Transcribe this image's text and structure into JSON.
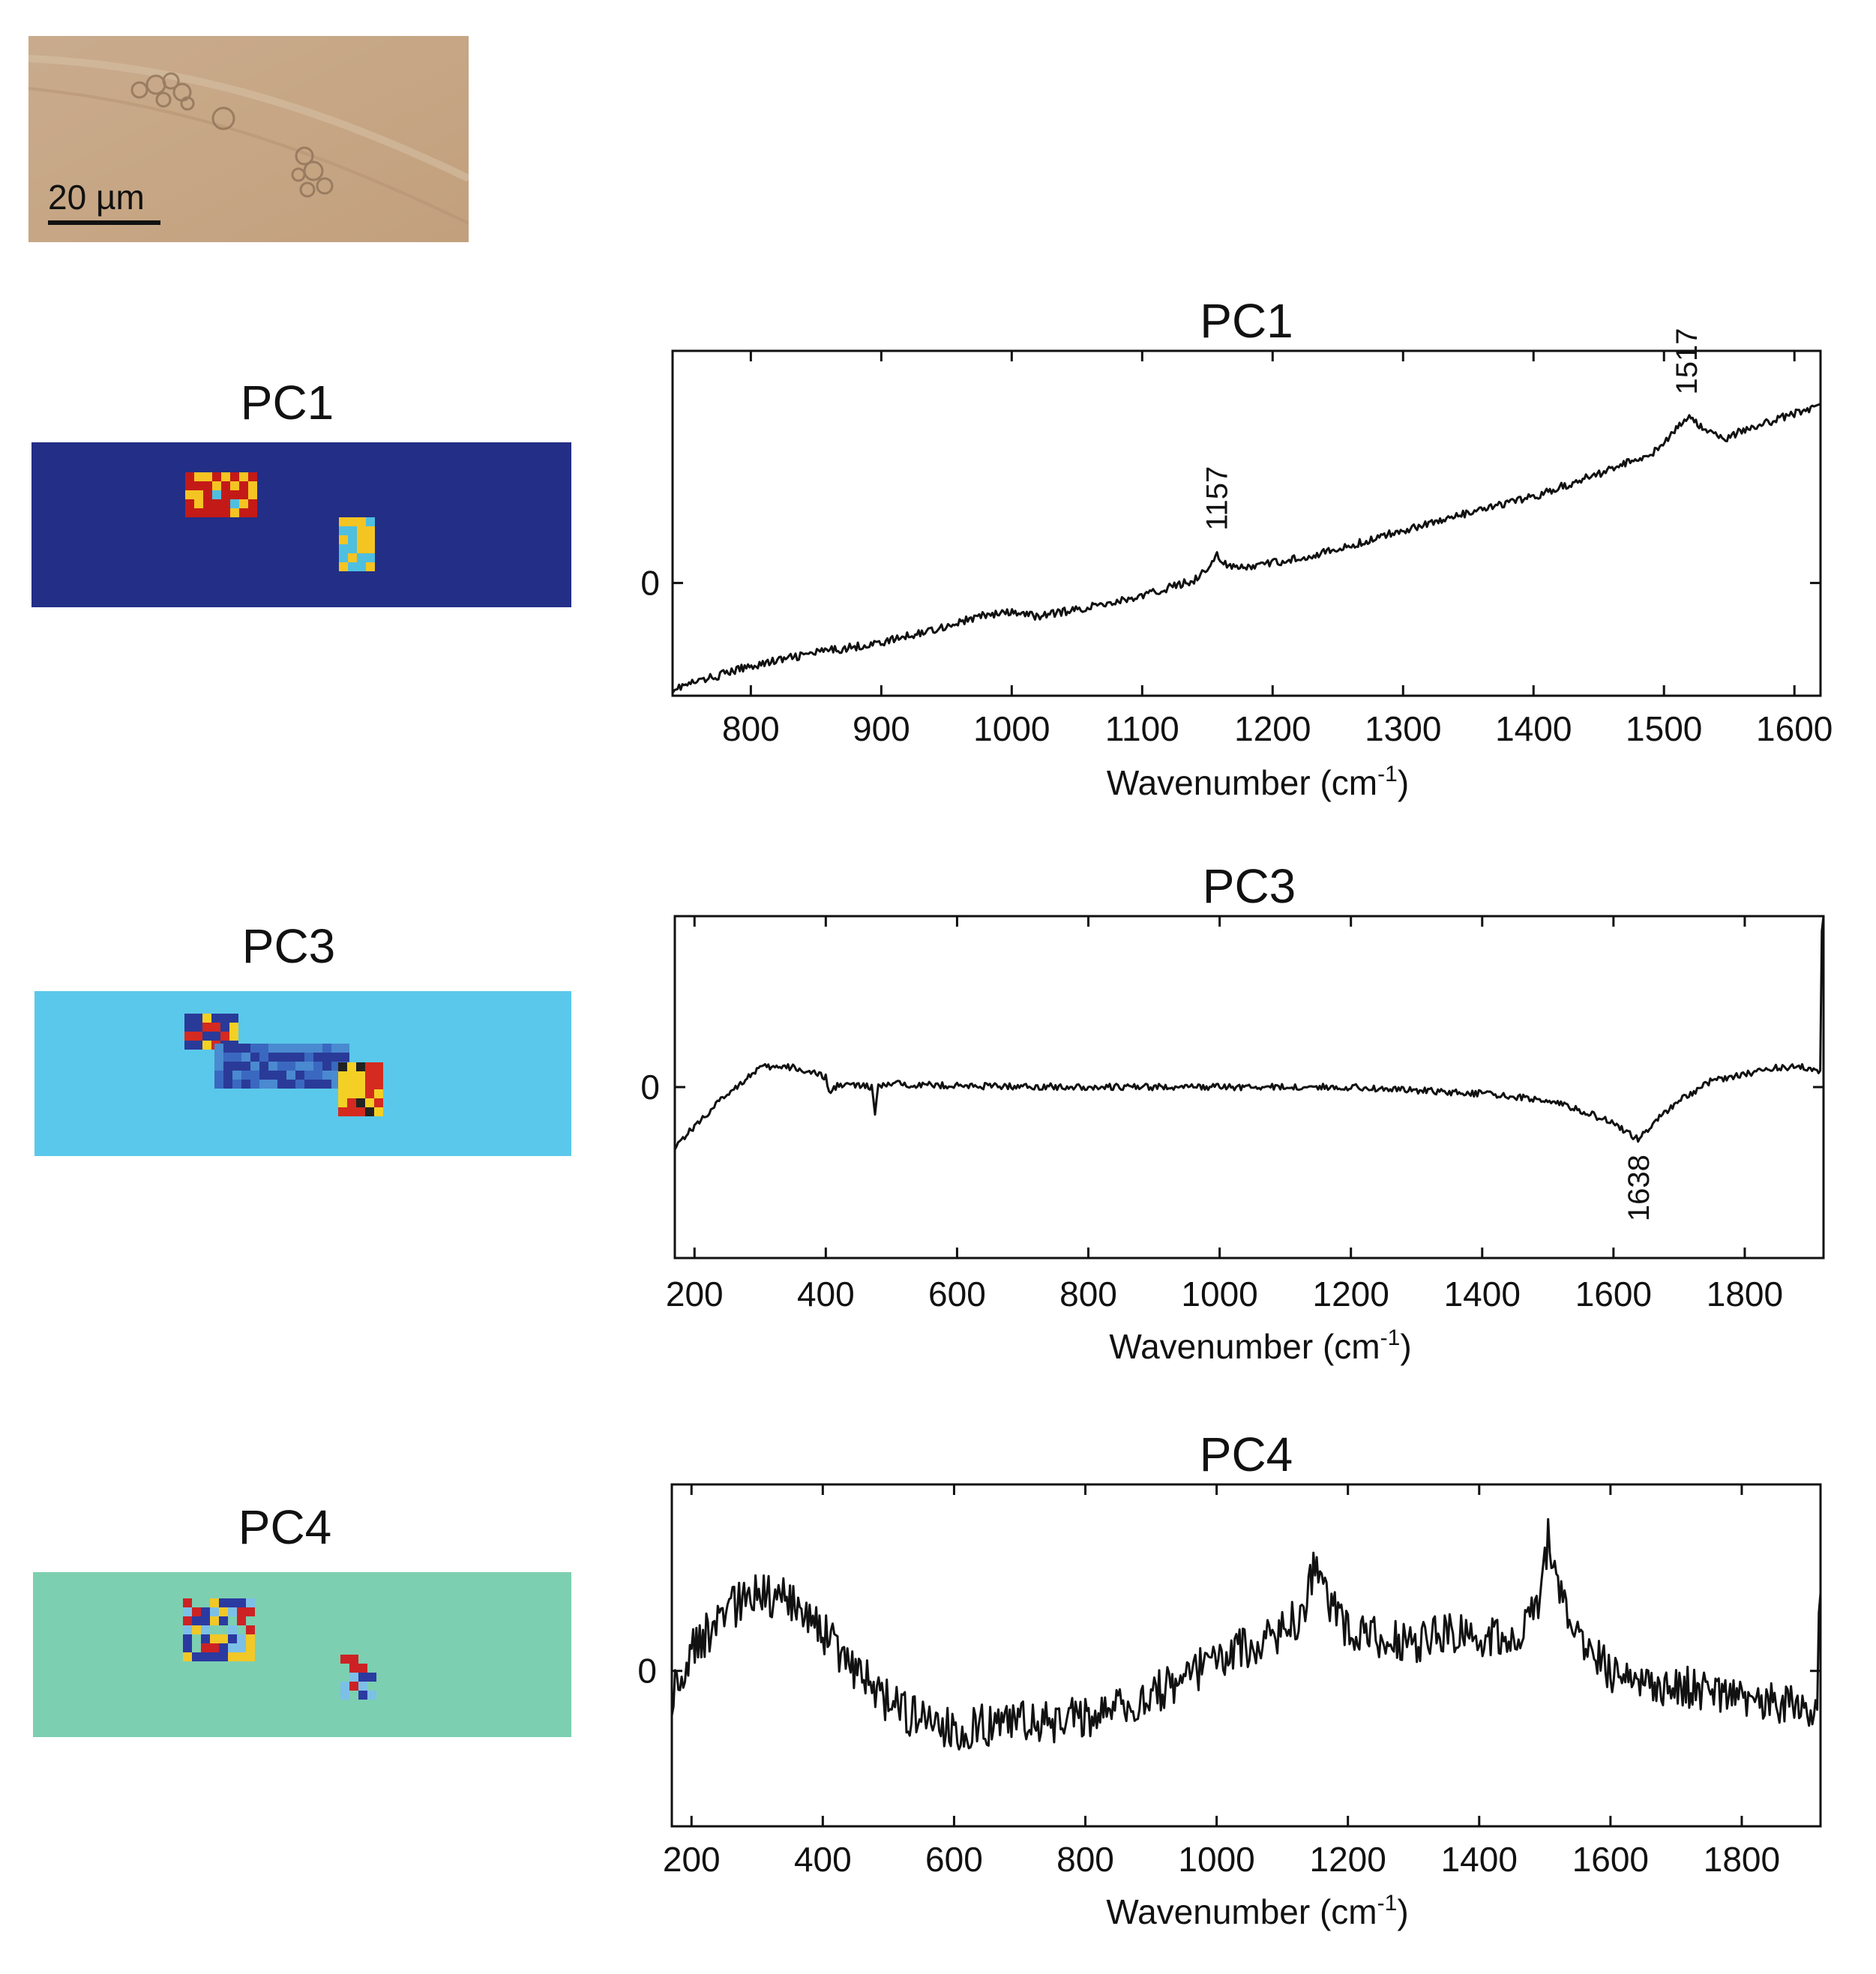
{
  "micrograph": {
    "scale_label": "20 µm"
  },
  "maps": [
    {
      "title": "PC1",
      "colors": {
        "background": "#232e86",
        "hot": "#c41a17",
        "warm": "#f4c423",
        "mid": "#4fbfe0"
      }
    },
    {
      "title": "PC3",
      "colors": {
        "background": "#5ac8ea",
        "hot": "#d42a1f",
        "warm": "#f4d025",
        "cold": "#2a3a98"
      }
    },
    {
      "title": "PC4",
      "colors": {
        "background": "#7ccfb1",
        "hot": "#cc2224",
        "warm": "#f2c827",
        "cold": "#2b3aa0"
      }
    }
  ],
  "chart_data": [
    {
      "type": "line",
      "title": "PC1",
      "xlabel": "Wavenumber (cm-1)",
      "ylabel": "",
      "xlim": [
        740,
        1620
      ],
      "ylim": [
        -1.7,
        3.5
      ],
      "xticks": [
        800,
        900,
        1000,
        1100,
        1200,
        1300,
        1400,
        1500,
        1600
      ],
      "yticks": [
        0
      ],
      "series": [
        {
          "x": [
            740,
            800,
            850,
            900,
            950,
            980,
            1000,
            1020,
            1050,
            1100,
            1140,
            1150,
            1157,
            1165,
            1175,
            1200,
            1250,
            1300,
            1350,
            1400,
            1450,
            1490,
            1505,
            1517,
            1530,
            1545,
            1560,
            1600,
            1620
          ],
          "y": [
            -1.6,
            -1.25,
            -1.05,
            -0.9,
            -0.65,
            -0.48,
            -0.45,
            -0.5,
            -0.4,
            -0.2,
            0.05,
            0.2,
            0.45,
            0.25,
            0.22,
            0.3,
            0.5,
            0.8,
            1.05,
            1.3,
            1.65,
            1.95,
            2.2,
            2.5,
            2.35,
            2.15,
            2.3,
            2.55,
            2.7
          ]
        }
      ],
      "annotations": [
        {
          "x": 1157,
          "label": "1157"
        },
        {
          "x": 1517,
          "label": "1517"
        }
      ]
    },
    {
      "type": "line",
      "title": "PC3",
      "xlabel": "Wavenumber (cm-1)",
      "ylabel": "",
      "xlim": [
        170,
        1920
      ],
      "ylim": [
        -2.6,
        2.6
      ],
      "xticks": [
        200,
        400,
        600,
        800,
        1000,
        1200,
        1400,
        1600,
        1800
      ],
      "yticks": [
        0
      ],
      "series": [
        {
          "x": [
            170,
            200,
            250,
            300,
            350,
            400,
            405,
            420,
            470,
            475,
            480,
            500,
            600,
            800,
            1000,
            1200,
            1400,
            1500,
            1550,
            1600,
            1638,
            1660,
            1700,
            1750,
            1800,
            1850,
            1900,
            1915,
            1918,
            1920
          ],
          "y": [
            -0.9,
            -0.6,
            -0.1,
            0.3,
            0.3,
            0.15,
            -0.1,
            0.05,
            0.0,
            -0.4,
            0.0,
            0.05,
            0.02,
            0.0,
            0.0,
            0.0,
            -0.1,
            -0.2,
            -0.35,
            -0.55,
            -0.8,
            -0.55,
            -0.2,
            0.1,
            0.2,
            0.3,
            0.3,
            0.25,
            2.8,
            2.8
          ]
        }
      ],
      "annotations": [
        {
          "x": 1638,
          "label": "1638"
        }
      ]
    },
    {
      "type": "line",
      "title": "PC4",
      "xlabel": "Wavenumber (cm-1)",
      "ylabel": "",
      "xlim": [
        170,
        1920
      ],
      "ylim": [
        -4.0,
        4.8
      ],
      "xticks": [
        200,
        400,
        600,
        800,
        1000,
        1200,
        1400,
        1600,
        1800
      ],
      "yticks": [
        0
      ],
      "series": [
        {
          "x": [
            170,
            200,
            250,
            300,
            350,
            400,
            450,
            500,
            550,
            600,
            650,
            700,
            750,
            800,
            850,
            900,
            950,
            1000,
            1050,
            1100,
            1130,
            1150,
            1170,
            1200,
            1250,
            1300,
            1350,
            1400,
            1450,
            1490,
            1505,
            1515,
            1525,
            1550,
            1600,
            1650,
            1700,
            1750,
            1800,
            1850,
            1900,
            1915,
            1918,
            1920
          ],
          "y": [
            -0.6,
            0.5,
            1.5,
            2.0,
            1.8,
            1.0,
            0.0,
            -0.8,
            -1.3,
            -1.5,
            -1.4,
            -1.3,
            -1.3,
            -1.2,
            -1.0,
            -0.6,
            -0.3,
            0.4,
            0.6,
            1.0,
            1.5,
            2.8,
            1.8,
            1.0,
            0.8,
            0.7,
            1.0,
            0.9,
            0.9,
            1.6,
            3.4,
            2.8,
            2.0,
            1.0,
            0.0,
            -0.5,
            -0.4,
            -0.5,
            -0.7,
            -0.8,
            -0.9,
            -1.0,
            2.0,
            2.0
          ]
        }
      ]
    }
  ]
}
